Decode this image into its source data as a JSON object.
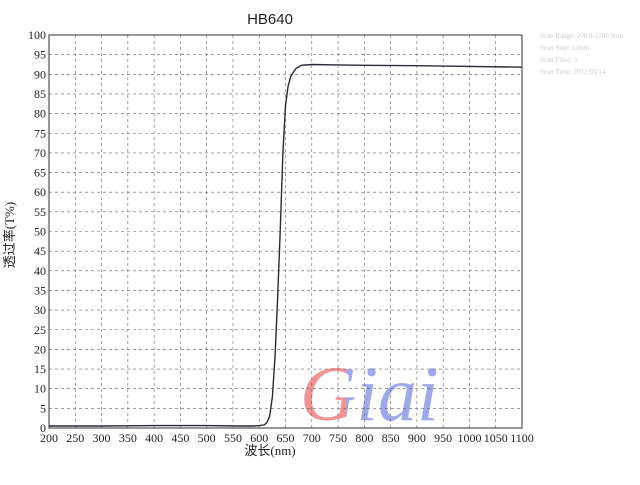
{
  "chart_data": {
    "type": "line",
    "title": "HB640",
    "x_label": "波长(nm)",
    "y_label": "透过率(T%)",
    "x": [
      200,
      300,
      400,
      500,
      560,
      590,
      600,
      610,
      615,
      620,
      625,
      630,
      635,
      640,
      645,
      650,
      655,
      660,
      670,
      680,
      700,
      750,
      800,
      900,
      1000,
      1100
    ],
    "series": [
      {
        "name": "HB640",
        "color": "#2a2a3a",
        "values": [
          0.5,
          0.5,
          0.6,
          0.6,
          0.5,
          0.5,
          0.6,
          0.8,
          1.5,
          3,
          8,
          18,
          33,
          50,
          70,
          82,
          87,
          89.5,
          91.5,
          92.3,
          92.5,
          92.4,
          92.3,
          92.2,
          92,
          91.8
        ]
      }
    ],
    "xlim": [
      200,
      1100
    ],
    "xticks": [
      200,
      250,
      300,
      350,
      400,
      450,
      500,
      550,
      600,
      650,
      700,
      750,
      800,
      850,
      900,
      950,
      1000,
      1050,
      1100
    ],
    "ylim": [
      0,
      100
    ],
    "yticks": [
      0,
      5,
      10,
      15,
      20,
      25,
      30,
      35,
      40,
      45,
      50,
      55,
      60,
      65,
      70,
      75,
      80,
      85,
      90,
      95,
      100
    ],
    "grid": true,
    "notes": [
      "Scan Range: 200.0-1100.0nm",
      "Scan Step: 1.0nm",
      "Scan Filter: 5",
      "Scan Time: 2012/03/14"
    ],
    "watermark": "Giai"
  }
}
